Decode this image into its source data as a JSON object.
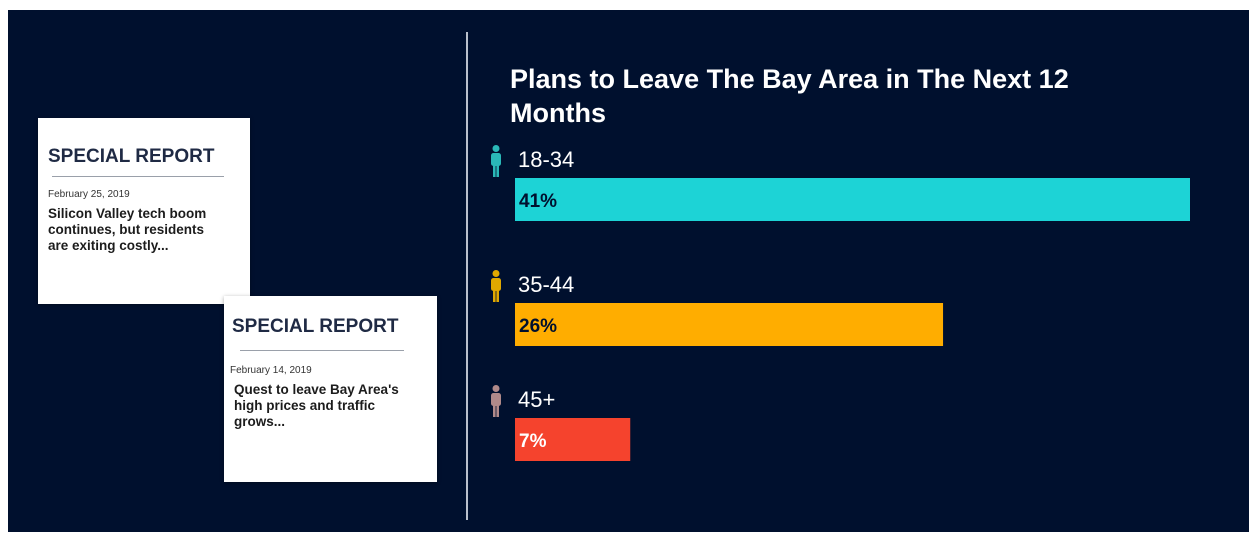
{
  "card1": {
    "heading": "SPECIAL REPORT",
    "date": "February 25, 2019",
    "text": "Silicon Valley tech boom continues, but residents are exiting costly..."
  },
  "card2": {
    "heading": "SPECIAL REPORT",
    "date": "February 14, 2019",
    "text": "Quest to leave Bay Area's high prices and traffic grows..."
  },
  "chart_data": {
    "type": "bar",
    "orientation": "horizontal",
    "title": "Plans to Leave The Bay Area in The Next 12 Months",
    "categories": [
      "18-34",
      "35-44",
      "45+"
    ],
    "values": [
      41,
      26,
      7
    ],
    "value_labels": [
      "41%",
      "26%",
      "7%"
    ],
    "unit": "%",
    "colors": [
      "#1dd3d6",
      "#ffad00",
      "#f5432d"
    ],
    "label_colors": [
      "#00102e",
      "#00102e",
      "#ffffff"
    ],
    "icons": [
      "person-teal-icon",
      "person-gold-icon",
      "person-mauve-icon"
    ],
    "icon_colors": [
      "#2ab8b8",
      "#e0a800",
      "#b08a8a"
    ],
    "grid": false,
    "legend": "none"
  }
}
